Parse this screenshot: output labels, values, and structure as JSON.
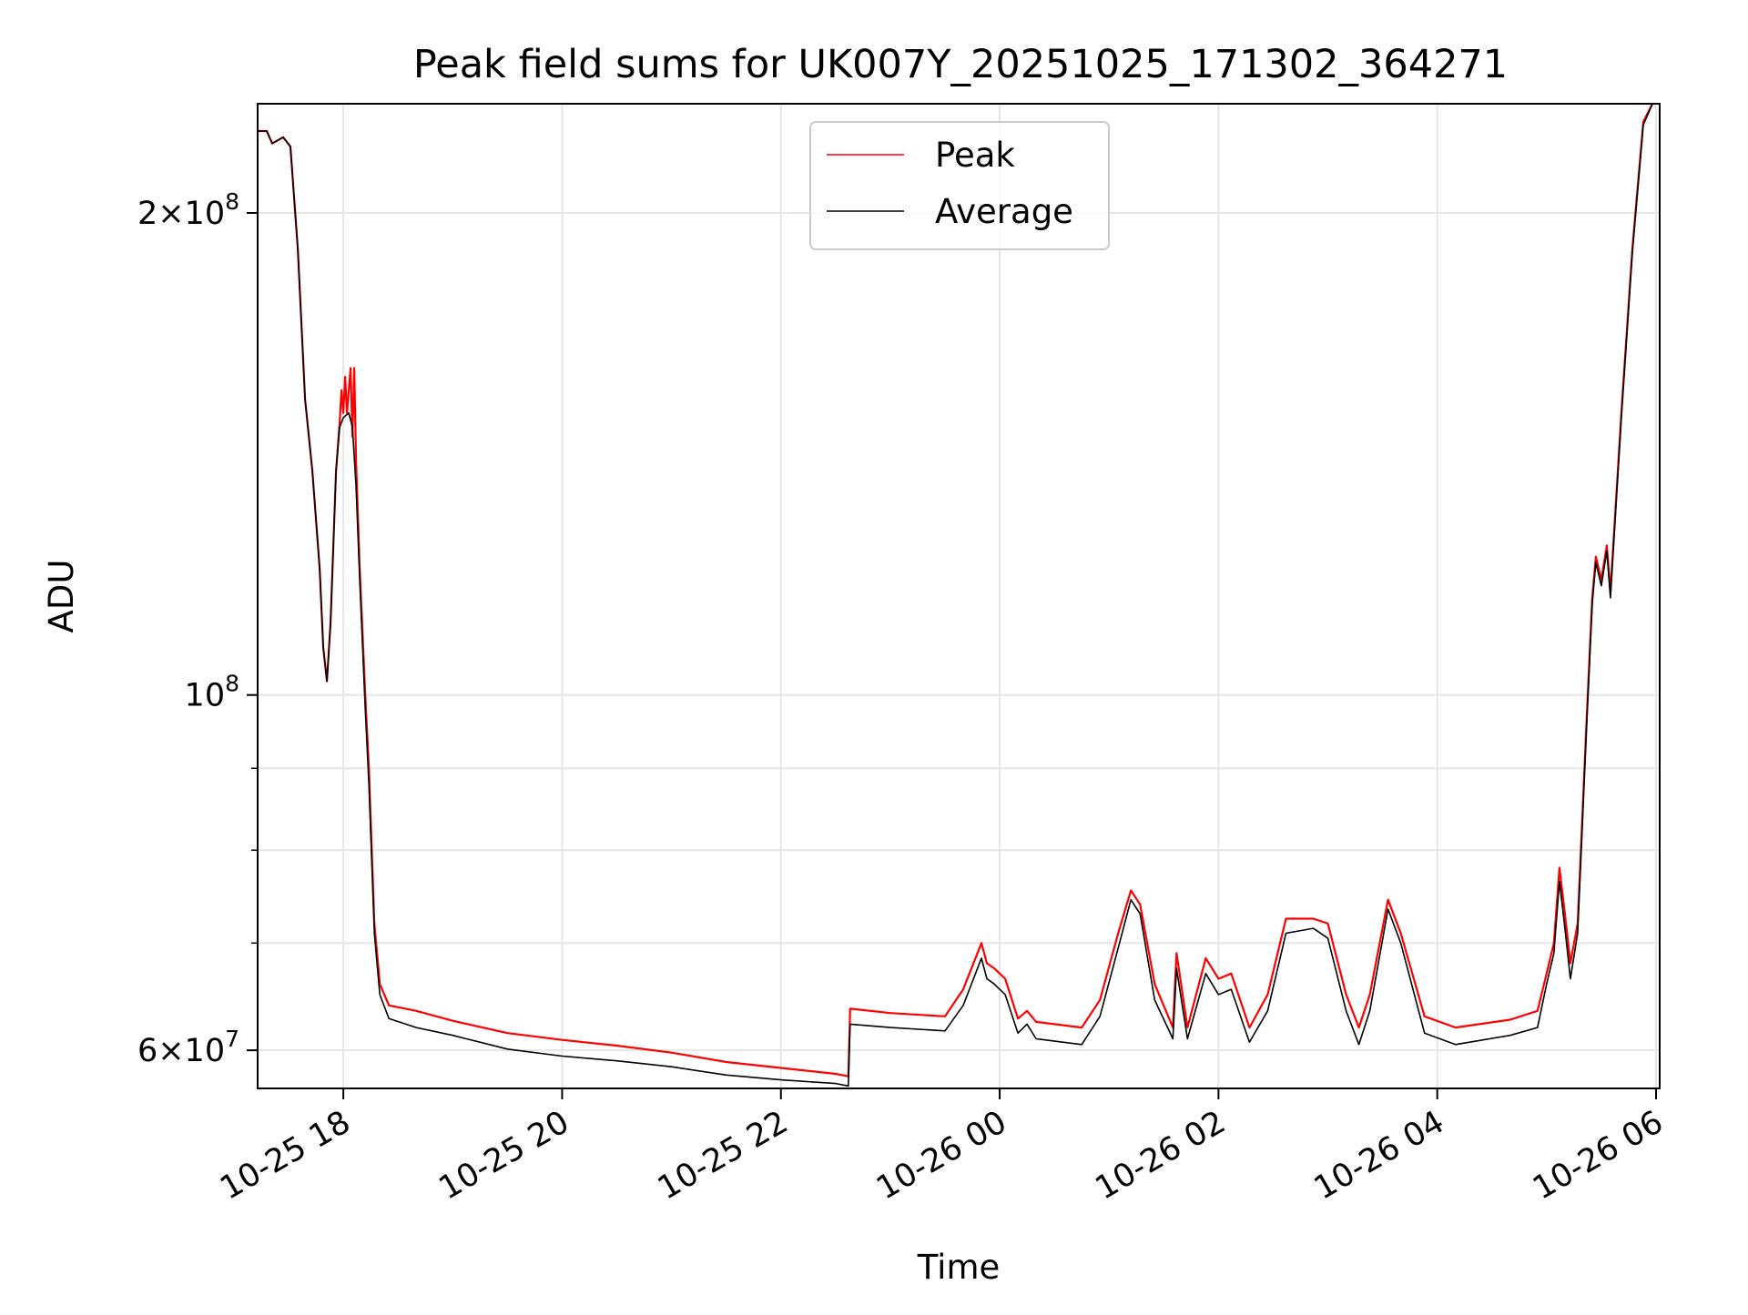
{
  "chart_data": {
    "type": "line",
    "title": "Peak field sums for UK007Y_20251025_171302_364271",
    "xlabel": "Time",
    "ylabel": "ADU",
    "y_scale": "log",
    "grid": true,
    "legend_position": "top-center",
    "x_range": [
      "2025-10-25 17:13",
      "2025-10-26 06:02"
    ],
    "y_range": [
      56800000,
      234000000
    ],
    "x_ticks": [
      {
        "value": "2025-10-25 18:00",
        "label": "10-25 18"
      },
      {
        "value": "2025-10-25 20:00",
        "label": "10-25 20"
      },
      {
        "value": "2025-10-25 22:00",
        "label": "10-25 22"
      },
      {
        "value": "2025-10-26 00:00",
        "label": "10-26 00"
      },
      {
        "value": "2025-10-26 02:00",
        "label": "10-26 02"
      },
      {
        "value": "2025-10-26 04:00",
        "label": "10-26 04"
      },
      {
        "value": "2025-10-26 06:00",
        "label": "10-26 06"
      }
    ],
    "y_ticks": [
      {
        "value": 60000000,
        "base": "6",
        "exp": "7"
      },
      {
        "value": 100000000,
        "base": "",
        "exp": "8"
      },
      {
        "value": 200000000,
        "base": "2",
        "exp": "8"
      }
    ],
    "y_minor_ticks": [
      70000000,
      80000000,
      90000000
    ],
    "series": [
      {
        "name": "Peak",
        "color": "#ff0000",
        "points": [
          [
            "2025-10-25 17:13",
            225000000
          ],
          [
            "2025-10-25 17:18",
            225000000
          ],
          [
            "2025-10-25 17:21",
            221000000
          ],
          [
            "2025-10-25 17:27",
            223000000
          ],
          [
            "2025-10-25 17:31",
            220000000
          ],
          [
            "2025-10-25 17:35",
            190000000
          ],
          [
            "2025-10-25 17:39",
            153000000
          ],
          [
            "2025-10-25 17:43",
            138000000
          ],
          [
            "2025-10-25 17:47",
            120000000
          ],
          [
            "2025-10-25 17:49",
            107000000
          ],
          [
            "2025-10-25 17:51",
            102000000
          ],
          [
            "2025-10-25 17:53",
            111000000
          ],
          [
            "2025-10-25 17:56",
            138000000
          ],
          [
            "2025-10-25 17:58",
            148000000
          ],
          [
            "2025-10-25 17:59",
            155000000
          ],
          [
            "2025-10-25 18:00",
            150000000
          ],
          [
            "2025-10-25 18:01",
            158000000
          ],
          [
            "2025-10-25 18:02",
            150000000
          ],
          [
            "2025-10-25 18:04",
            160000000
          ],
          [
            "2025-10-25 18:05",
            145000000
          ],
          [
            "2025-10-25 18:06",
            160000000
          ],
          [
            "2025-10-25 18:07",
            140000000
          ],
          [
            "2025-10-25 18:09",
            120000000
          ],
          [
            "2025-10-25 18:12",
            100000000
          ],
          [
            "2025-10-25 18:14",
            90000000
          ],
          [
            "2025-10-25 18:17",
            72000000
          ],
          [
            "2025-10-25 18:20",
            66000000
          ],
          [
            "2025-10-25 18:25",
            64000000
          ],
          [
            "2025-10-25 18:40",
            63500000
          ],
          [
            "2025-10-25 19:00",
            62600000
          ],
          [
            "2025-10-25 19:30",
            61500000
          ],
          [
            "2025-10-25 20:00",
            60900000
          ],
          [
            "2025-10-25 20:30",
            60400000
          ],
          [
            "2025-10-25 21:00",
            59800000
          ],
          [
            "2025-10-25 21:30",
            59000000
          ],
          [
            "2025-10-25 22:00",
            58500000
          ],
          [
            "2025-10-25 22:30",
            58000000
          ],
          [
            "2025-10-25 22:37",
            57800000
          ],
          [
            "2025-10-25 22:38",
            63700000
          ],
          [
            "2025-10-25 23:00",
            63300000
          ],
          [
            "2025-10-25 23:30",
            63000000
          ],
          [
            "2025-10-25 23:40",
            65500000
          ],
          [
            "2025-10-25 23:50",
            70000000
          ],
          [
            "2025-10-25 23:53",
            68000000
          ],
          [
            "2025-10-25 23:57",
            67500000
          ],
          [
            "2025-10-26 00:03",
            66500000
          ],
          [
            "2025-10-26 00:10",
            62800000
          ],
          [
            "2025-10-26 00:15",
            63500000
          ],
          [
            "2025-10-26 00:20",
            62500000
          ],
          [
            "2025-10-26 00:45",
            62000000
          ],
          [
            "2025-10-26 00:55",
            64500000
          ],
          [
            "2025-10-26 01:05",
            71000000
          ],
          [
            "2025-10-26 01:12",
            75500000
          ],
          [
            "2025-10-26 01:17",
            74000000
          ],
          [
            "2025-10-26 01:25",
            66000000
          ],
          [
            "2025-10-26 01:35",
            62000000
          ],
          [
            "2025-10-26 01:37",
            69000000
          ],
          [
            "2025-10-26 01:43",
            62000000
          ],
          [
            "2025-10-26 01:53",
            68500000
          ],
          [
            "2025-10-26 02:00",
            66500000
          ],
          [
            "2025-10-26 02:07",
            67000000
          ],
          [
            "2025-10-26 02:17",
            62000000
          ],
          [
            "2025-10-26 02:27",
            65000000
          ],
          [
            "2025-10-26 02:37",
            72500000
          ],
          [
            "2025-10-26 02:52",
            72500000
          ],
          [
            "2025-10-26 03:00",
            72000000
          ],
          [
            "2025-10-26 03:10",
            65000000
          ],
          [
            "2025-10-26 03:17",
            62000000
          ],
          [
            "2025-10-26 03:23",
            65000000
          ],
          [
            "2025-10-26 03:33",
            74500000
          ],
          [
            "2025-10-26 03:40",
            71000000
          ],
          [
            "2025-10-26 03:53",
            63000000
          ],
          [
            "2025-10-26 04:10",
            62000000
          ],
          [
            "2025-10-26 04:40",
            62700000
          ],
          [
            "2025-10-26 04:55",
            63500000
          ],
          [
            "2025-10-26 05:00",
            67000000
          ],
          [
            "2025-10-26 05:04",
            70000000
          ],
          [
            "2025-10-26 05:07",
            78000000
          ],
          [
            "2025-10-26 05:10",
            73000000
          ],
          [
            "2025-10-26 05:13",
            68000000
          ],
          [
            "2025-10-26 05:17",
            72000000
          ],
          [
            "2025-10-26 05:22",
            97000000
          ],
          [
            "2025-10-26 05:25",
            115000000
          ],
          [
            "2025-10-26 05:27",
            122000000
          ],
          [
            "2025-10-26 05:30",
            118000000
          ],
          [
            "2025-10-26 05:33",
            124000000
          ],
          [
            "2025-10-26 05:35",
            116000000
          ],
          [
            "2025-10-26 05:41",
            150000000
          ],
          [
            "2025-10-26 05:47",
            190000000
          ],
          [
            "2025-10-26 05:53",
            228000000
          ],
          [
            "2025-10-26 05:58",
            234000000
          ]
        ]
      },
      {
        "name": "Average",
        "color": "#000000",
        "points": [
          [
            "2025-10-25 17:13",
            225000000
          ],
          [
            "2025-10-25 17:18",
            225000000
          ],
          [
            "2025-10-25 17:21",
            221000000
          ],
          [
            "2025-10-25 17:27",
            223000000
          ],
          [
            "2025-10-25 17:31",
            220000000
          ],
          [
            "2025-10-25 17:35",
            190000000
          ],
          [
            "2025-10-25 17:39",
            153000000
          ],
          [
            "2025-10-25 17:43",
            138000000
          ],
          [
            "2025-10-25 17:47",
            120000000
          ],
          [
            "2025-10-25 17:49",
            107000000
          ],
          [
            "2025-10-25 17:51",
            102000000
          ],
          [
            "2025-10-25 17:53",
            111000000
          ],
          [
            "2025-10-25 17:56",
            138000000
          ],
          [
            "2025-10-25 17:58",
            147000000
          ],
          [
            "2025-10-25 18:00",
            149000000
          ],
          [
            "2025-10-25 18:03",
            150000000
          ],
          [
            "2025-10-25 18:05",
            147000000
          ],
          [
            "2025-10-25 18:07",
            135000000
          ],
          [
            "2025-10-25 18:09",
            118000000
          ],
          [
            "2025-10-25 18:12",
            98000000
          ],
          [
            "2025-10-25 18:14",
            88000000
          ],
          [
            "2025-10-25 18:17",
            71000000
          ],
          [
            "2025-10-25 18:20",
            65000000
          ],
          [
            "2025-10-25 18:25",
            62800000
          ],
          [
            "2025-10-25 18:40",
            62000000
          ],
          [
            "2025-10-25 19:00",
            61300000
          ],
          [
            "2025-10-25 19:30",
            60100000
          ],
          [
            "2025-10-25 20:00",
            59500000
          ],
          [
            "2025-10-25 20:30",
            59100000
          ],
          [
            "2025-10-25 21:00",
            58600000
          ],
          [
            "2025-10-25 21:30",
            57900000
          ],
          [
            "2025-10-25 22:00",
            57500000
          ],
          [
            "2025-10-25 22:30",
            57200000
          ],
          [
            "2025-10-25 22:37",
            57000000
          ],
          [
            "2025-10-25 22:38",
            62300000
          ],
          [
            "2025-10-25 23:00",
            62000000
          ],
          [
            "2025-10-25 23:30",
            61700000
          ],
          [
            "2025-10-25 23:40",
            64000000
          ],
          [
            "2025-10-25 23:50",
            68500000
          ],
          [
            "2025-10-25 23:53",
            66500000
          ],
          [
            "2025-10-25 23:57",
            66000000
          ],
          [
            "2025-10-26 00:03",
            65000000
          ],
          [
            "2025-10-26 00:10",
            61500000
          ],
          [
            "2025-10-26 00:15",
            62300000
          ],
          [
            "2025-10-26 00:20",
            61000000
          ],
          [
            "2025-10-26 00:45",
            60500000
          ],
          [
            "2025-10-26 00:55",
            63000000
          ],
          [
            "2025-10-26 01:05",
            69500000
          ],
          [
            "2025-10-26 01:12",
            74500000
          ],
          [
            "2025-10-26 01:17",
            73000000
          ],
          [
            "2025-10-26 01:25",
            64500000
          ],
          [
            "2025-10-26 01:35",
            61000000
          ],
          [
            "2025-10-26 01:37",
            67500000
          ],
          [
            "2025-10-26 01:43",
            61000000
          ],
          [
            "2025-10-26 01:53",
            67000000
          ],
          [
            "2025-10-26 02:00",
            65000000
          ],
          [
            "2025-10-26 02:07",
            65500000
          ],
          [
            "2025-10-26 02:17",
            60700000
          ],
          [
            "2025-10-26 02:27",
            63500000
          ],
          [
            "2025-10-26 02:37",
            71000000
          ],
          [
            "2025-10-26 02:52",
            71500000
          ],
          [
            "2025-10-26 03:00",
            70500000
          ],
          [
            "2025-10-26 03:10",
            63500000
          ],
          [
            "2025-10-26 03:17",
            60500000
          ],
          [
            "2025-10-26 03:23",
            63500000
          ],
          [
            "2025-10-26 03:33",
            73500000
          ],
          [
            "2025-10-26 03:40",
            70000000
          ],
          [
            "2025-10-26 03:53",
            61500000
          ],
          [
            "2025-10-26 04:10",
            60500000
          ],
          [
            "2025-10-26 04:40",
            61300000
          ],
          [
            "2025-10-26 04:55",
            62000000
          ],
          [
            "2025-10-26 05:00",
            66000000
          ],
          [
            "2025-10-26 05:04",
            69000000
          ],
          [
            "2025-10-26 05:07",
            76500000
          ],
          [
            "2025-10-26 05:10",
            71500000
          ],
          [
            "2025-10-26 05:13",
            66500000
          ],
          [
            "2025-10-26 05:17",
            71000000
          ],
          [
            "2025-10-26 05:22",
            96000000
          ],
          [
            "2025-10-26 05:25",
            114000000
          ],
          [
            "2025-10-26 05:27",
            121000000
          ],
          [
            "2025-10-26 05:30",
            117000000
          ],
          [
            "2025-10-26 05:33",
            123000000
          ],
          [
            "2025-10-26 05:35",
            115000000
          ],
          [
            "2025-10-26 05:41",
            149000000
          ],
          [
            "2025-10-26 05:47",
            189000000
          ],
          [
            "2025-10-26 05:53",
            227000000
          ],
          [
            "2025-10-26 05:58",
            234000000
          ]
        ]
      }
    ]
  }
}
